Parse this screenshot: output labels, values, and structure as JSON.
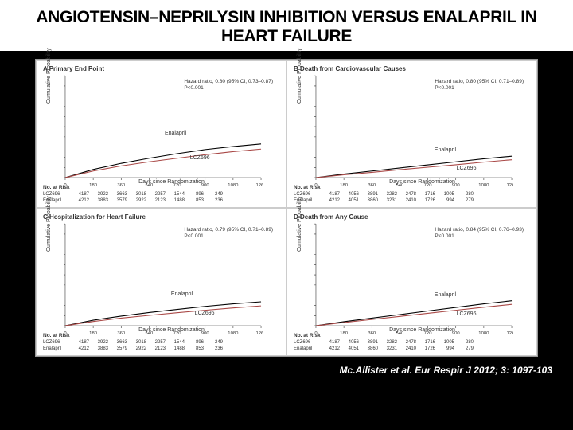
{
  "title": "ANGIOTENSIN–NEPRILYSIN INHIBITION VERSUS ENALAPRIL IN HEART FAILURE",
  "citation": "Mc.Allister et al. Eur Respir J 2012; 3: 1097-103",
  "shared": {
    "ylabel": "Cumulative Probability",
    "xlabel": "Days since Randomization",
    "ylim": [
      0,
      1.0
    ],
    "ytick_step": 0.1,
    "xlim": [
      0,
      1260
    ],
    "xticks": [
      0,
      180,
      360,
      540,
      720,
      900,
      1080,
      1260
    ],
    "risk_title": "No. at Risk",
    "line_color_enalapril": "#000000",
    "line_color_lcz": "#a94846",
    "series_top": "Enalapril",
    "series_bottom": "LCZ696",
    "background": "#ffffff",
    "label_fontsize": 7
  },
  "panels": [
    {
      "key": "A",
      "title": "A   Primary End Point",
      "hr_line1": "Hazard ratio, 0.80 (95% CI, 0.73–0.87)",
      "hr_line2": "P<0.001",
      "lbl_top_xy": [
        640,
        0.38
      ],
      "lbl_bot_xy": [
        800,
        0.22
      ],
      "enalapril_y": [
        0,
        0.08,
        0.14,
        0.19,
        0.235,
        0.275,
        0.305,
        0.33
      ],
      "lcz_y": [
        0,
        0.065,
        0.115,
        0.155,
        0.19,
        0.225,
        0.255,
        0.28
      ],
      "risk": [
        [
          "LCZ696",
          "4187",
          "3922",
          "3663",
          "3018",
          "2257",
          "1544",
          "896",
          "249"
        ],
        [
          "Enalapril",
          "4212",
          "3883",
          "3579",
          "2922",
          "2123",
          "1488",
          "853",
          "236"
        ]
      ]
    },
    {
      "key": "B",
      "title": "B   Death from Cardiovascular Causes",
      "hr_line1": "Hazard ratio, 0.80 (95% CI, 0.71–0.89)",
      "hr_line2": "P<0.001",
      "lbl_top_xy": [
        760,
        0.22
      ],
      "lbl_bot_xy": [
        900,
        0.12
      ],
      "enalapril_y": [
        0,
        0.035,
        0.065,
        0.095,
        0.125,
        0.155,
        0.185,
        0.21
      ],
      "lcz_y": [
        0,
        0.028,
        0.052,
        0.078,
        0.102,
        0.126,
        0.152,
        0.175
      ],
      "risk": [
        [
          "LCZ696",
          "4187",
          "4056",
          "3891",
          "3282",
          "2478",
          "1716",
          "1005",
          "280"
        ],
        [
          "Enalapril",
          "4212",
          "4051",
          "3860",
          "3231",
          "2410",
          "1726",
          "994",
          "279"
        ]
      ]
    },
    {
      "key": "C",
      "title": "C   Hospitalization for Heart Failure",
      "hr_line1": "Hazard ratio, 0.79 (95% CI, 0.71–0.89)",
      "hr_line2": "P<0.001",
      "lbl_top_xy": [
        680,
        0.26
      ],
      "lbl_bot_xy": [
        830,
        0.15
      ],
      "enalapril_y": [
        0,
        0.055,
        0.095,
        0.13,
        0.16,
        0.19,
        0.215,
        0.235
      ],
      "lcz_y": [
        0,
        0.042,
        0.075,
        0.102,
        0.128,
        0.152,
        0.175,
        0.195
      ],
      "risk": [
        [
          "LCZ696",
          "4187",
          "3922",
          "3663",
          "3018",
          "2257",
          "1544",
          "896",
          "249"
        ],
        [
          "Enalapril",
          "4212",
          "3883",
          "3579",
          "2922",
          "2123",
          "1488",
          "853",
          "236"
        ]
      ]
    },
    {
      "key": "D",
      "title": "D   Death from Any Cause",
      "hr_line1": "Hazard ratio, 0.84 (95% CI, 0.76–0.93)",
      "hr_line2": "P<0.001",
      "lbl_top_xy": [
        760,
        0.25
      ],
      "lbl_bot_xy": [
        900,
        0.14
      ],
      "enalapril_y": [
        0,
        0.04,
        0.075,
        0.11,
        0.145,
        0.18,
        0.215,
        0.245
      ],
      "lcz_y": [
        0,
        0.032,
        0.062,
        0.092,
        0.122,
        0.152,
        0.182,
        0.21
      ],
      "risk": [
        [
          "LCZ696",
          "4187",
          "4056",
          "3891",
          "3282",
          "2478",
          "1716",
          "1005",
          "280"
        ],
        [
          "Enalapril",
          "4212",
          "4051",
          "3860",
          "3231",
          "2410",
          "1726",
          "994",
          "279"
        ]
      ]
    }
  ]
}
